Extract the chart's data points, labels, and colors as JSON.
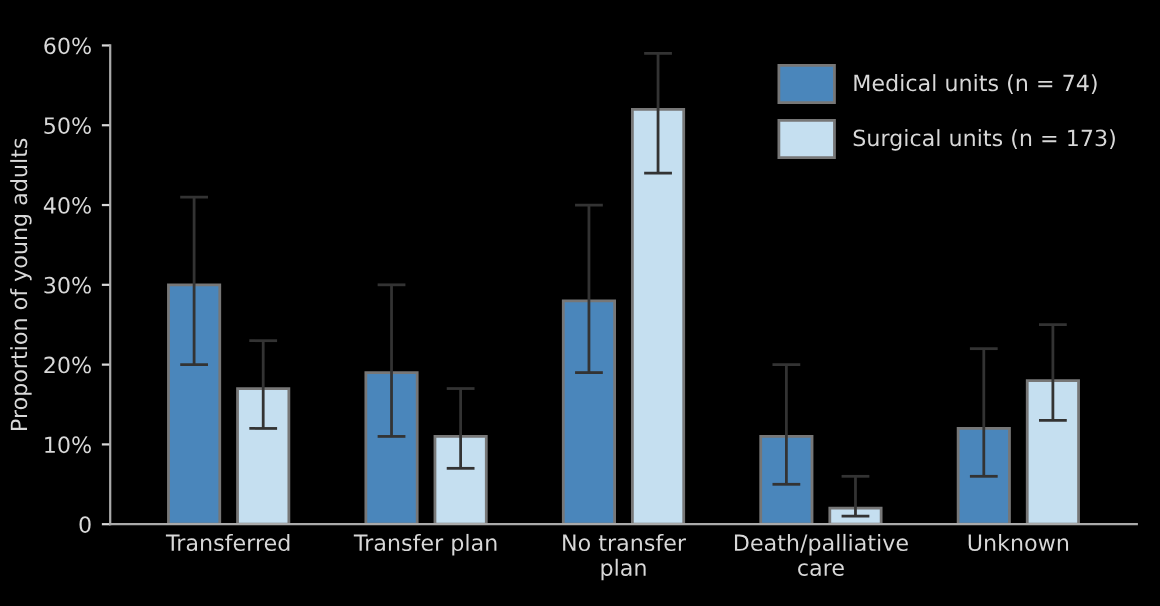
{
  "chart_data": {
    "type": "bar",
    "ylabel": "Proportion of young adults",
    "categories": [
      "Transferred",
      "Transfer plan",
      "No transfer\nplan",
      "Death/palliative\ncare",
      "Unknown"
    ],
    "series": [
      {
        "name": "Medical units (n = 74)",
        "color": "#4a86bb",
        "values": [
          30,
          19,
          28,
          11,
          12
        ],
        "errors": [
          [
            20,
            41
          ],
          [
            11,
            30
          ],
          [
            19,
            40
          ],
          [
            5,
            20
          ],
          [
            6,
            22
          ]
        ]
      },
      {
        "name": "Surgical units (n = 173)",
        "color": "#c5dff0",
        "values": [
          17,
          11,
          52,
          2,
          18
        ],
        "errors": [
          [
            12,
            23
          ],
          [
            7,
            17
          ],
          [
            44,
            59
          ],
          [
            1,
            6
          ],
          [
            13,
            25
          ]
        ]
      }
    ],
    "ylim": [
      0,
      60
    ],
    "yticks": [
      0,
      {
        "value": 10,
        "label": "10%"
      },
      {
        "value": 20,
        "label": "20%"
      },
      {
        "value": 30,
        "label": "30%"
      },
      {
        "value": 40,
        "label": "40%"
      },
      {
        "value": 50,
        "label": "50%"
      },
      {
        "value": 60,
        "label": "60%"
      }
    ],
    "grid": false,
    "legend": "top right"
  }
}
